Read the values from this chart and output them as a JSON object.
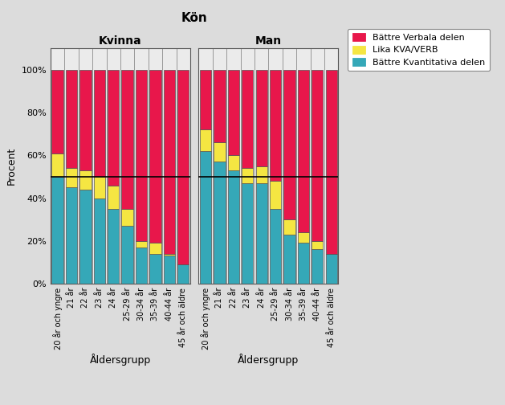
{
  "categories": [
    "20 år\noch y.",
    "21 år",
    "22 år",
    "23 år",
    "24 år",
    "25-29 år",
    "30-34 år",
    "35-39 år",
    "40-44 år",
    "45 år\noch ä."
  ],
  "cat_labels": [
    "20 år och yngre",
    "21 år",
    "22 år",
    "23 år",
    "24 år",
    "25-29 år",
    "30-34 år",
    "35-39 år",
    "40-44 år",
    "45 år och äldre"
  ],
  "kvinna": {
    "kva": [
      50,
      45,
      44,
      40,
      35,
      27,
      17,
      14,
      13,
      9
    ],
    "lika": [
      11,
      9,
      9,
      10,
      11,
      8,
      3,
      5,
      1,
      0
    ],
    "verb": [
      39,
      46,
      47,
      50,
      54,
      65,
      80,
      81,
      86,
      91
    ]
  },
  "man": {
    "kva": [
      62,
      57,
      53,
      47,
      47,
      35,
      23,
      19,
      16,
      14
    ],
    "lika": [
      10,
      9,
      7,
      7,
      8,
      13,
      7,
      5,
      4,
      0
    ],
    "verb": [
      28,
      34,
      40,
      46,
      45,
      52,
      70,
      76,
      80,
      86
    ]
  },
  "color_verb": "#E8174B",
  "color_lika": "#F5E642",
  "color_kva": "#35A8B8",
  "title": "Kön",
  "xlabel": "Åldersgrupp",
  "ylabel": "Procent",
  "legend_verb": "Bättre Verbala delen",
  "legend_lika": "Lika KVA/VERB",
  "legend_kva": "Bättre Kvantitativa delen",
  "panel_kvinna": "Kvinna",
  "panel_man": "Man",
  "bg_color": "#DCDCDC",
  "panel_bg_color": "#EBEBEB"
}
